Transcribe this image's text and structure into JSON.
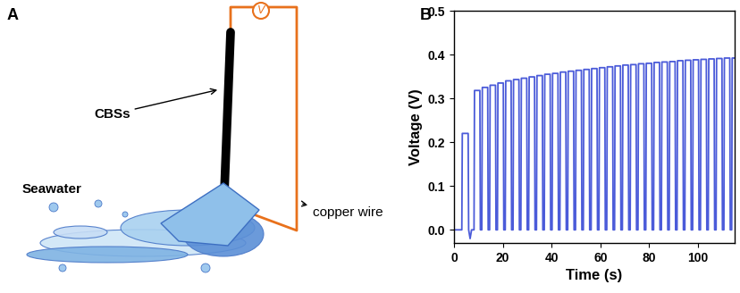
{
  "diagram": {
    "panel_label": "A",
    "meter": "V",
    "stick_label": "CBSs",
    "water_label": "Seawater",
    "wire_label": "copper wire"
  },
  "chart_data": {
    "type": "line",
    "title": "B",
    "x_label": "Time (s)",
    "y_label": "Voltage (V)",
    "xlim": [
      0,
      115
    ],
    "ylim": [
      -0.03,
      0.5
    ],
    "xticks": [
      0,
      20,
      40,
      60,
      80,
      100
    ],
    "yticks": [
      0.0,
      0.1,
      0.2,
      0.3,
      0.4,
      0.5
    ],
    "series": [
      {
        "name": "Voltage",
        "color": "#4b5bd9",
        "x": [
          0,
          3.2,
          3.4,
          5.8,
          6.0,
          6.6,
          7.2,
          7.6,
          8.2,
          8.4,
          10.6,
          10.8,
          11.4,
          11.6,
          13.8,
          14.0,
          14.6,
          14.8,
          17.0,
          17.2,
          17.8,
          18.0,
          20.2,
          20.4,
          21.0,
          21.2,
          23.4,
          23.6,
          24.2,
          24.4,
          26.6,
          26.8,
          27.4,
          27.6,
          29.8,
          30.0,
          30.6,
          30.8,
          33.0,
          33.2,
          33.8,
          34.0,
          36.2,
          36.4,
          37.0,
          37.2,
          39.4,
          39.6,
          40.2,
          40.4,
          42.6,
          42.8,
          43.4,
          43.6,
          45.8,
          46.0,
          46.6,
          46.8,
          49.0,
          49.2,
          49.8,
          50.0,
          52.2,
          52.4,
          53.0,
          53.2,
          55.4,
          55.6,
          56.2,
          56.4,
          58.6,
          58.8,
          59.4,
          59.6,
          61.8,
          62.0,
          62.6,
          62.8,
          65.0,
          65.2,
          65.8,
          66.0,
          68.2,
          68.4,
          69.0,
          69.2,
          71.4,
          71.6,
          72.2,
          72.4,
          74.6,
          74.8,
          75.4,
          75.6,
          77.8,
          78.0,
          78.6,
          78.8,
          81.0,
          81.2,
          81.8,
          82.0,
          84.2,
          84.4,
          85.0,
          85.2,
          87.4,
          87.6,
          88.2,
          88.4,
          90.6,
          90.8,
          91.4,
          91.6,
          93.8,
          94.0,
          94.6,
          94.8,
          97.0,
          97.2,
          97.8,
          98.0,
          100.2,
          100.4,
          101.0,
          101.2,
          103.4,
          103.6,
          104.2,
          104.4,
          106.6,
          106.8,
          107.4,
          107.6,
          109.8,
          110.0,
          110.6,
          110.8,
          113.0,
          113.2,
          113.8,
          114.0,
          115.0
        ],
        "values": [
          0,
          0,
          0.22,
          0.22,
          0,
          -0.02,
          0,
          0,
          0,
          0.318,
          0.318,
          0,
          0,
          0.325,
          0.325,
          0,
          0,
          0.33,
          0.33,
          0,
          0,
          0.335,
          0.335,
          0,
          0,
          0.34,
          0.34,
          0,
          0,
          0.343,
          0.343,
          0,
          0,
          0.346,
          0.346,
          0,
          0,
          0.349,
          0.349,
          0,
          0,
          0.352,
          0.352,
          0,
          0,
          0.355,
          0.355,
          0,
          0,
          0.357,
          0.357,
          0,
          0,
          0.36,
          0.36,
          0,
          0,
          0.362,
          0.362,
          0,
          0,
          0.364,
          0.364,
          0,
          0,
          0.366,
          0.366,
          0,
          0,
          0.368,
          0.368,
          0,
          0,
          0.37,
          0.37,
          0,
          0,
          0.372,
          0.372,
          0,
          0,
          0.374,
          0.374,
          0,
          0,
          0.376,
          0.376,
          0,
          0,
          0.377,
          0.377,
          0,
          0,
          0.379,
          0.379,
          0,
          0,
          0.38,
          0.38,
          0,
          0,
          0.382,
          0.382,
          0,
          0,
          0.383,
          0.383,
          0,
          0,
          0.384,
          0.384,
          0,
          0,
          0.386,
          0.386,
          0,
          0,
          0.387,
          0.387,
          0,
          0,
          0.388,
          0.388,
          0,
          0,
          0.389,
          0.389,
          0,
          0,
          0.39,
          0.39,
          0,
          0,
          0.391,
          0.391,
          0,
          0,
          0.392,
          0.392,
          0,
          0,
          0.392,
          0.392
        ]
      }
    ]
  }
}
